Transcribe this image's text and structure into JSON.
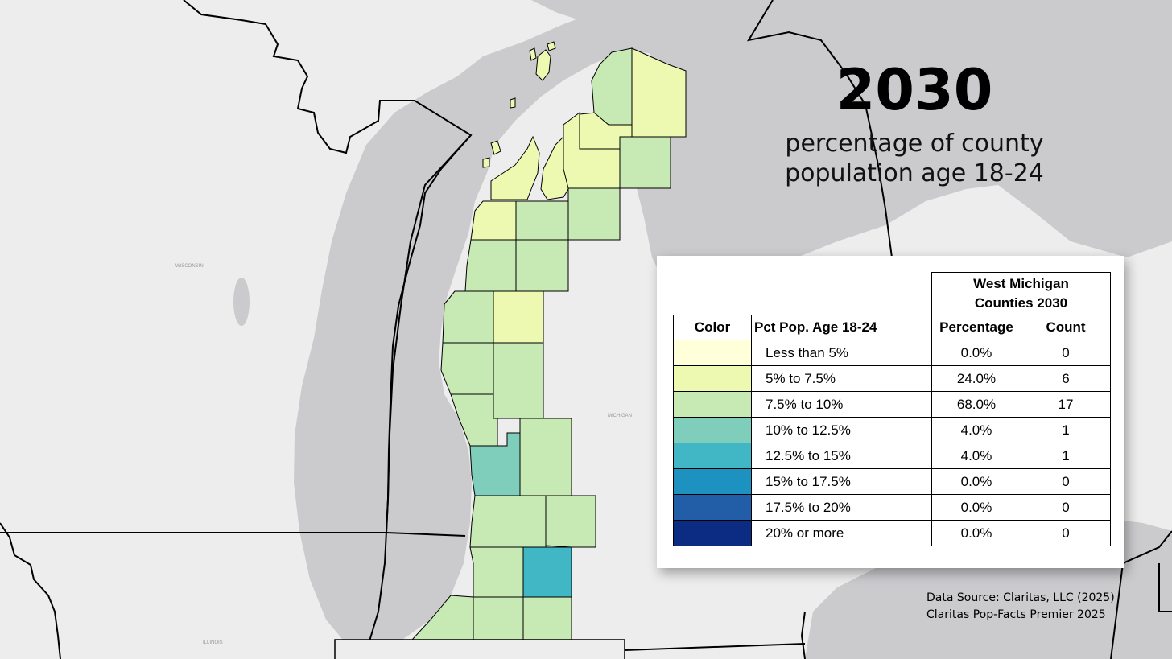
{
  "title": {
    "year": "2030",
    "subtitle_line1": "percentage of county",
    "subtitle_line2": "population age 18-24"
  },
  "map_labels": {
    "wisconsin": "WISCONSIN",
    "michigan": "MICHIGAN",
    "illinois": "ILLINOIS"
  },
  "legend": {
    "group_header_line1": "West Michigan",
    "group_header_line2": "Counties 2030",
    "col_color": "Color",
    "col_range": "Pct Pop. Age 18-24",
    "col_pct": "Percentage",
    "col_count": "Count",
    "rows": [
      {
        "range": "Less than 5%",
        "pct": "0.0%",
        "count": "0",
        "color": "#ffffd9"
      },
      {
        "range": "5% to 7.5%",
        "pct": "24.0%",
        "count": "6",
        "color": "#edf8b1"
      },
      {
        "range": "7.5% to 10%",
        "pct": "68.0%",
        "count": "17",
        "color": "#c7e9b4"
      },
      {
        "range": "10% to 12.5%",
        "pct": "4.0%",
        "count": "1",
        "color": "#7fcdbb"
      },
      {
        "range": "12.5% to 15%",
        "pct": "4.0%",
        "count": "1",
        "color": "#41b6c4"
      },
      {
        "range": "15% to 17.5%",
        "pct": "0.0%",
        "count": "0",
        "color": "#1d91c0"
      },
      {
        "range": "17.5% to 20%",
        "pct": "0.0%",
        "count": "0",
        "color": "#225ea8"
      },
      {
        "range": "20% or more",
        "pct": "0.0%",
        "count": "0",
        "color": "#0c2c84"
      }
    ]
  },
  "source": {
    "line1": "Data Source: Claritas, LLC (2025)",
    "line2": "Claritas Pop-Facts Premier 2025"
  },
  "colors": {
    "background": "#ededed",
    "water": "#cbcbce",
    "boundary": "#000000"
  }
}
